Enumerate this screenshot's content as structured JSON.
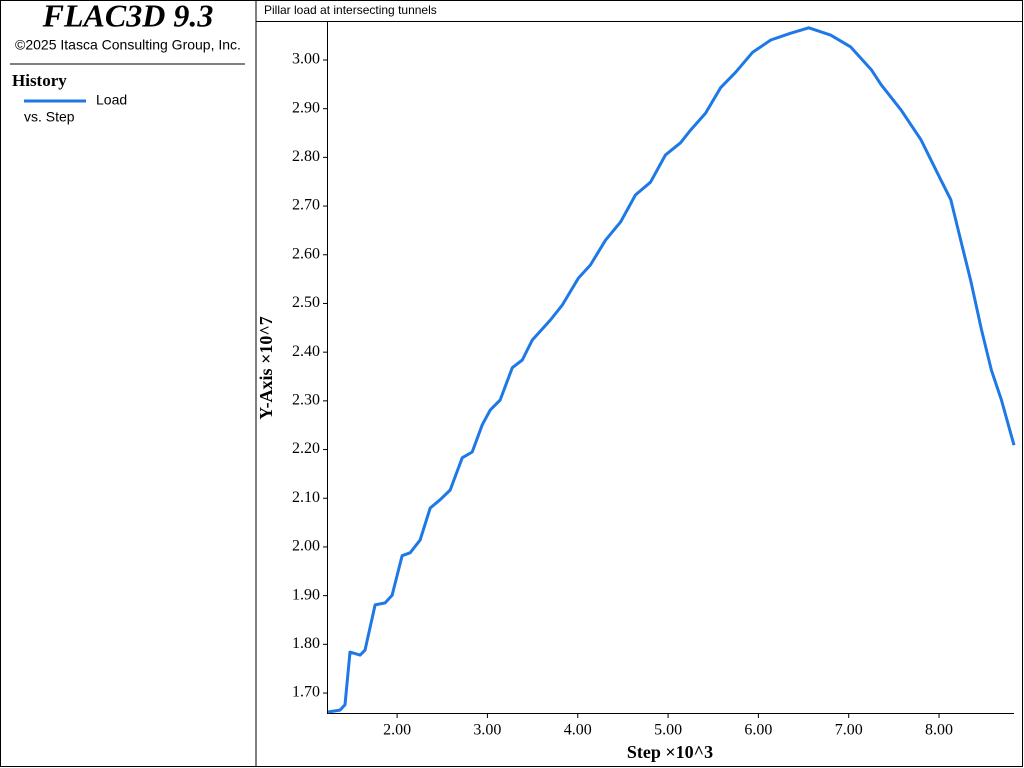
{
  "app": {
    "title": "FLAC3D 9.3",
    "copyright": "©2025 Itasca Consulting Group, Inc.",
    "legend_heading": "History"
  },
  "chart_data": {
    "type": "line",
    "title": "Pillar load at intersecting tunnels",
    "xlabel": "Step ×10^3",
    "ylabel": "Y-Axis ×10^7",
    "legend_suffix": "vs. Step",
    "xlim": [
      1.235,
      8.83
    ],
    "ylim": [
      1.659,
      3.078
    ],
    "xticks": [
      {
        "value": 2,
        "label": "2.00"
      },
      {
        "value": 3,
        "label": "3.00"
      },
      {
        "value": 4,
        "label": "4.00"
      },
      {
        "value": 5,
        "label": "5.00"
      },
      {
        "value": 6,
        "label": "6.00"
      },
      {
        "value": 7,
        "label": "7.00"
      },
      {
        "value": 8,
        "label": "8.00"
      }
    ],
    "yticks": [
      {
        "value": 1.7,
        "label": "1.70"
      },
      {
        "value": 1.8,
        "label": "1.80"
      },
      {
        "value": 1.9,
        "label": "1.90"
      },
      {
        "value": 2,
        "label": "2.00"
      },
      {
        "value": 2.1,
        "label": "2.10"
      },
      {
        "value": 2.2,
        "label": "2.20"
      },
      {
        "value": 2.3,
        "label": "2.30"
      },
      {
        "value": 2.4,
        "label": "2.40"
      },
      {
        "value": 2.5,
        "label": "2.50"
      },
      {
        "value": 2.6,
        "label": "2.60"
      },
      {
        "value": 2.7,
        "label": "2.70"
      },
      {
        "value": 2.8,
        "label": "2.80"
      },
      {
        "value": 2.9,
        "label": "2.90"
      },
      {
        "value": 3,
        "label": "3.00"
      }
    ],
    "series": [
      {
        "name": "Load",
        "color": "#1e78e6",
        "x": [
          1.235,
          1.368,
          1.423,
          1.479,
          1.59,
          1.645,
          1.756,
          1.867,
          1.945,
          2.055,
          2.144,
          2.255,
          2.366,
          2.477,
          2.588,
          2.721,
          2.832,
          2.943,
          3.031,
          3.142,
          3.275,
          3.386,
          3.497,
          3.697,
          3.83,
          4.007,
          4.14,
          4.307,
          4.473,
          4.639,
          4.806,
          4.972,
          5.138,
          5.249,
          5.416,
          5.582,
          5.749,
          5.937,
          6.137,
          6.358,
          6.558,
          6.8,
          7.02,
          7.25,
          7.36,
          7.58,
          7.8,
          8.02,
          8.13,
          8.24,
          8.35,
          8.47,
          8.58,
          8.69,
          8.83
        ],
        "values": [
          1.661,
          1.665,
          1.676,
          1.784,
          1.778,
          1.788,
          1.881,
          1.885,
          1.901,
          1.982,
          1.988,
          2.014,
          2.08,
          2.097,
          2.117,
          2.183,
          2.195,
          2.251,
          2.281,
          2.302,
          2.368,
          2.384,
          2.425,
          2.466,
          2.497,
          2.552,
          2.579,
          2.63,
          2.667,
          2.723,
          2.749,
          2.805,
          2.83,
          2.856,
          2.891,
          2.943,
          2.975,
          3.016,
          3.041,
          3.055,
          3.066,
          3.051,
          3.027,
          2.98,
          2.949,
          2.897,
          2.836,
          2.754,
          2.713,
          2.63,
          2.548,
          2.446,
          2.363,
          2.302,
          2.209
        ]
      }
    ]
  }
}
